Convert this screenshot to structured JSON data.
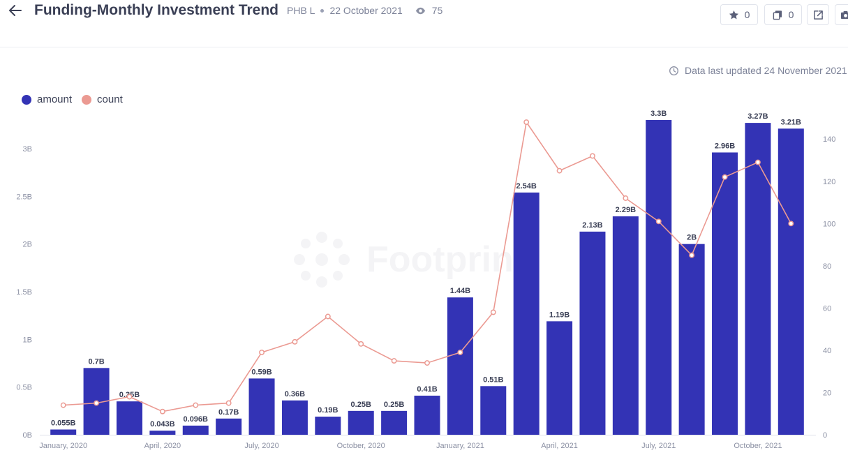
{
  "header": {
    "title": "Funding-Monthly Investment Trend",
    "author": "PHB L",
    "date": "22 October 2021",
    "views": "75",
    "star_count": "0",
    "copy_count": "0",
    "icons": [
      "back-arrow-icon",
      "eye-icon",
      "star-icon",
      "copy-icon",
      "share-icon",
      "camera-icon"
    ]
  },
  "updated_text": "Data last updated 24 November 2021",
  "watermark": "Footprint",
  "colors": {
    "amount": "#3333b5",
    "count": "#eb9a92",
    "grid": "#eceef3"
  },
  "chart_data": {
    "type": "bar",
    "categories": [
      "2020-01",
      "2020-02",
      "2020-03",
      "2020-04",
      "2020-05",
      "2020-06",
      "2020-07",
      "2020-08",
      "2020-09",
      "2020-10",
      "2020-11",
      "2020-12",
      "2021-01",
      "2021-02",
      "2021-03",
      "2021-04",
      "2021-05",
      "2021-06",
      "2021-07",
      "2021-08",
      "2021-09",
      "2021-10",
      "2021-11"
    ],
    "x_tick_labels": [
      {
        "index": 0,
        "label": "January, 2020"
      },
      {
        "index": 3,
        "label": "April, 2020"
      },
      {
        "index": 6,
        "label": "July, 2020"
      },
      {
        "index": 9,
        "label": "October, 2020"
      },
      {
        "index": 12,
        "label": "January, 2021"
      },
      {
        "index": 15,
        "label": "April, 2021"
      },
      {
        "index": 18,
        "label": "July, 2021"
      },
      {
        "index": 21,
        "label": "October, 2021"
      }
    ],
    "series": [
      {
        "name": "amount",
        "type": "bar",
        "axis": "left",
        "values": [
          0.055,
          0.7,
          0.35,
          0.043,
          0.096,
          0.17,
          0.59,
          0.36,
          0.19,
          0.25,
          0.25,
          0.41,
          1.44,
          0.51,
          2.54,
          1.19,
          2.13,
          2.29,
          3.3,
          2.0,
          2.96,
          3.27,
          3.21
        ],
        "labels": [
          "0.055B",
          "0.7B",
          "0.35B",
          "0.043B",
          "0.096B",
          "0.17B",
          "0.59B",
          "0.36B",
          "0.19B",
          "0.25B",
          "0.25B",
          "0.41B",
          "1.44B",
          "0.51B",
          "2.54B",
          "1.19B",
          "2.13B",
          "2.29B",
          "3.3B",
          "2B",
          "2.96B",
          "3.27B",
          "3.21B"
        ]
      },
      {
        "name": "count",
        "type": "line",
        "axis": "right",
        "values": [
          14,
          15,
          18,
          11,
          14,
          15,
          39,
          44,
          56,
          43,
          35,
          34,
          39,
          58,
          148,
          125,
          132,
          112,
          101,
          85,
          122,
          129,
          100
        ]
      }
    ],
    "left_axis": {
      "ylim": [
        0,
        3.3
      ],
      "ticks": [
        0,
        0.5,
        1,
        1.5,
        2,
        2.5,
        3
      ],
      "tick_labels": [
        "0B",
        "0.5B",
        "1B",
        "1.5B",
        "2B",
        "2.5B",
        "3B"
      ]
    },
    "right_axis": {
      "ylim": [
        0,
        149
      ],
      "ticks": [
        0,
        20,
        40,
        60,
        80,
        100,
        120,
        140
      ],
      "tick_labels": [
        "0",
        "20",
        "40",
        "60",
        "80",
        "100",
        "120",
        "140"
      ]
    },
    "grid": false,
    "legend": "top-left"
  }
}
